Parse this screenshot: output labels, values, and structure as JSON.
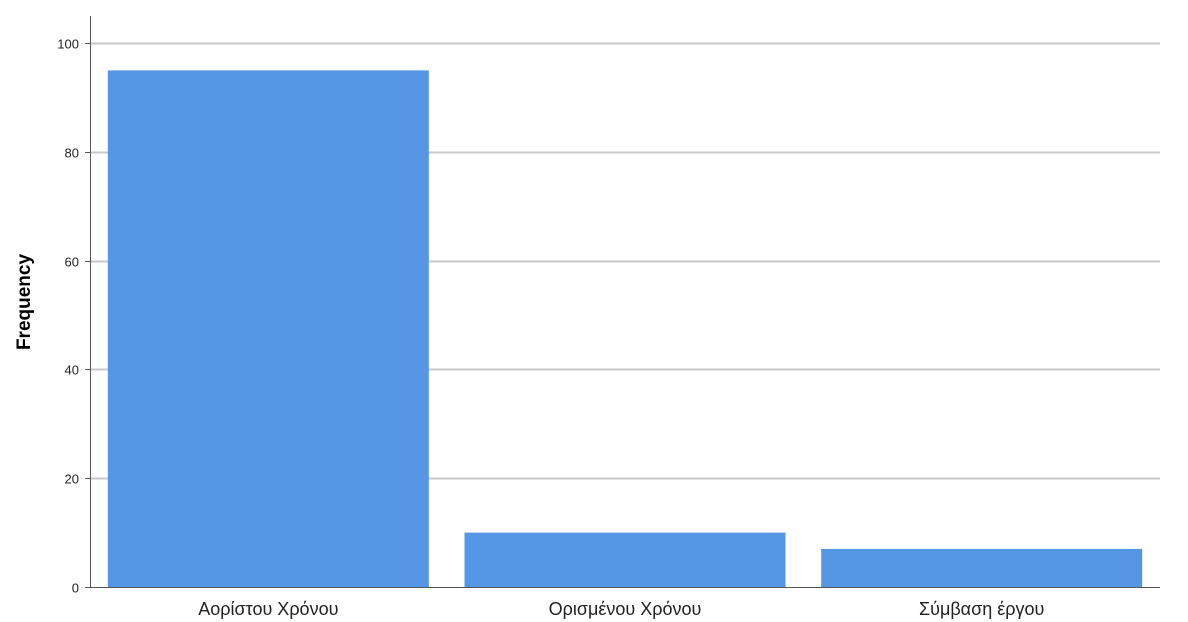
{
  "chart_data": {
    "type": "bar",
    "categories": [
      "Αορίστου Χρόνου",
      "Ορισμένου Χρόνου",
      "Σύμβαση έργου"
    ],
    "values": [
      95,
      10,
      7
    ],
    "title": "",
    "xlabel": "",
    "ylabel": "Frequency",
    "ylim": [
      0,
      105
    ],
    "yticks": [
      0,
      20,
      40,
      60,
      80,
      100
    ],
    "grid": true,
    "bar_color": "#5597E4",
    "grid_color": "#C8C8C8",
    "axis_color": "#555555"
  }
}
